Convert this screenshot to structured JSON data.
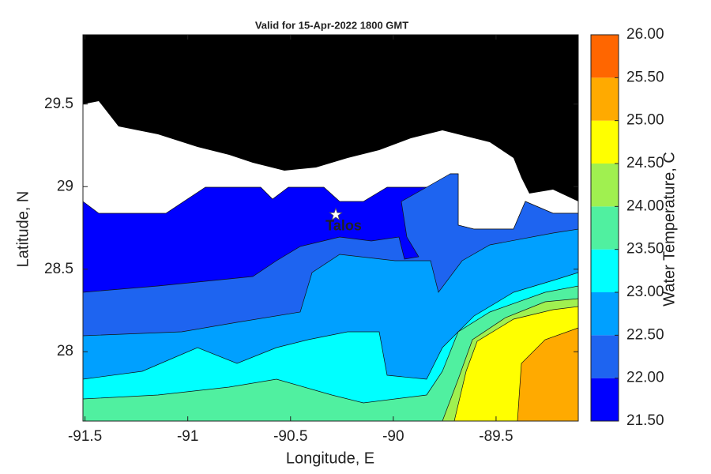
{
  "chart_data": {
    "type": "contour",
    "title": "Valid for 15-Apr-2022 1800 GMT",
    "x_label": "Longitude, E",
    "y_label": "Latitude, N",
    "colorbar_label": "Water Temperature, C",
    "xlim": [
      -91.51,
      -89.1
    ],
    "ylim": [
      27.58,
      29.92
    ],
    "xticks": [
      -91.5,
      -91,
      -90.5,
      -90,
      -89.5
    ],
    "yticks": [
      28,
      28.5,
      29,
      29.5
    ],
    "clim": [
      21.5,
      26
    ],
    "cticks": [
      {
        "value": 21.5,
        "label": "21.50"
      },
      {
        "value": 22,
        "label": "22.00"
      },
      {
        "value": 22.5,
        "label": "22.50"
      },
      {
        "value": 23,
        "label": "23.00"
      },
      {
        "value": 23.5,
        "label": "23.50"
      },
      {
        "value": 24,
        "label": "24.00"
      },
      {
        "value": 24.5,
        "label": "24.50"
      },
      {
        "value": 25,
        "label": "25.00"
      },
      {
        "value": 25.5,
        "label": "25.50"
      },
      {
        "value": 26,
        "label": "26.00"
      }
    ],
    "colors": [
      "#0000ff",
      "#1e64f0",
      "#00a0ff",
      "#00ffff",
      "#50f0a0",
      "#a0f050",
      "#ffff00",
      "#ffaa00",
      "#ff6600"
    ],
    "annotations": [
      {
        "text": "Talos",
        "x": -90.28,
        "y": 28.83
      }
    ]
  }
}
